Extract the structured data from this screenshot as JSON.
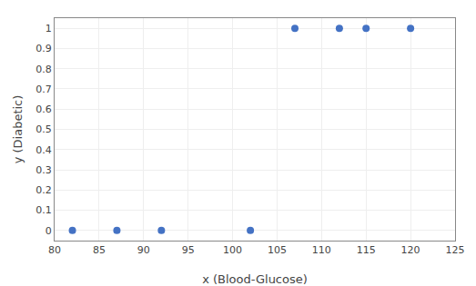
{
  "chart_data": {
    "type": "scatter",
    "x": [
      82,
      87,
      92,
      102,
      107,
      112,
      115,
      120
    ],
    "values": [
      0,
      0,
      0,
      0,
      1,
      1,
      1,
      1
    ],
    "xlabel": "x (Blood-Glucose)",
    "ylabel": "y (Diabetic)",
    "xlim": [
      80,
      125
    ],
    "ylim": [
      -0.05,
      1.05
    ],
    "xticks": [
      80,
      85,
      90,
      95,
      100,
      105,
      110,
      115,
      120,
      125
    ],
    "yticks": [
      0,
      0.1,
      0.2,
      0.3,
      0.4,
      0.5,
      0.6,
      0.7,
      0.8,
      0.9,
      1
    ],
    "color": "#4472C4",
    "grid": true
  }
}
